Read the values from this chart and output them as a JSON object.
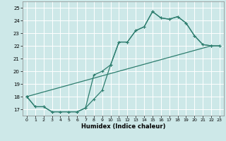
{
  "bg_color": "#cde8e8",
  "grid_color": "#ffffff",
  "line_color": "#2d7d6e",
  "xlabel": "Humidex (Indice chaleur)",
  "xlim": [
    -0.5,
    23.5
  ],
  "ylim": [
    16.5,
    25.5
  ],
  "xticks": [
    0,
    1,
    2,
    3,
    4,
    5,
    6,
    7,
    8,
    9,
    10,
    11,
    12,
    13,
    14,
    15,
    16,
    17,
    18,
    19,
    20,
    21,
    22,
    23
  ],
  "yticks": [
    17,
    18,
    19,
    20,
    21,
    22,
    23,
    24,
    25
  ],
  "line1_x": [
    0,
    1,
    2,
    3,
    4,
    5,
    6,
    7,
    8,
    9,
    10,
    11,
    12,
    13,
    14,
    15,
    16,
    17,
    18,
    19,
    20,
    21,
    22,
    23
  ],
  "line1_y": [
    18.0,
    17.2,
    17.2,
    16.8,
    16.8,
    16.8,
    16.8,
    17.1,
    17.8,
    18.5,
    20.5,
    22.3,
    22.3,
    23.2,
    23.5,
    24.7,
    24.2,
    24.1,
    24.3,
    23.8,
    22.8,
    22.1,
    22.0,
    22.0
  ],
  "line2_x": [
    0,
    1,
    2,
    3,
    4,
    5,
    6,
    7,
    8,
    9,
    10,
    11,
    12,
    13,
    14,
    15,
    16,
    17,
    18,
    19,
    20,
    21,
    22,
    23
  ],
  "line2_y": [
    18.0,
    17.2,
    17.2,
    16.8,
    16.8,
    16.8,
    16.8,
    17.1,
    19.7,
    20.0,
    20.5,
    22.3,
    22.3,
    23.2,
    23.5,
    24.7,
    24.2,
    24.1,
    24.3,
    23.8,
    22.8,
    22.1,
    22.0,
    22.0
  ],
  "line3_x": [
    0,
    22
  ],
  "line3_y": [
    18.0,
    22.0
  ]
}
